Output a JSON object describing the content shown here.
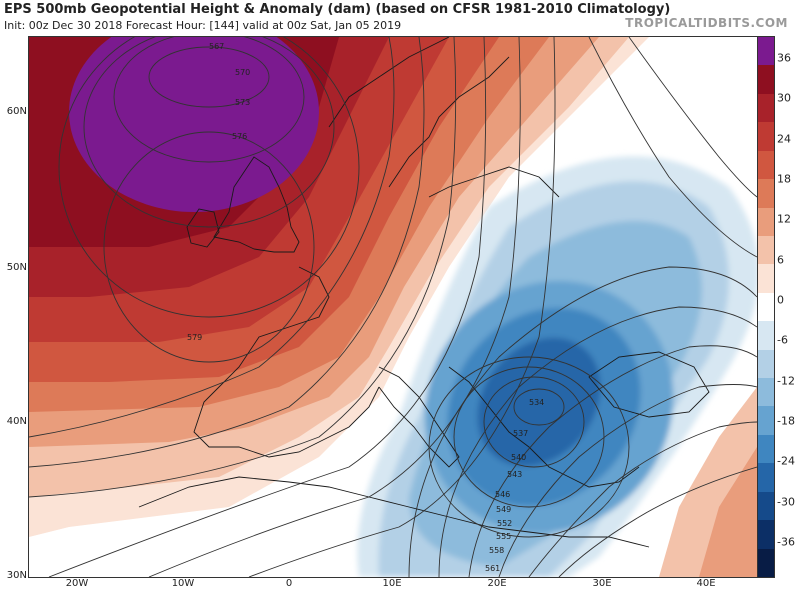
{
  "header": {
    "title": "EPS 500mb Geopotential Height & Anomaly (dam) (based on CFSR 1981-2010 Climatology)",
    "subtitle": "Init: 00z Dec 30 2018   Forecast Hour: [144]   valid at 00z Sat, Jan 05 2019",
    "brand": "TROPICALTIDBITS.COM"
  },
  "map": {
    "lat_labels": [
      "60N",
      "50N",
      "40N",
      "30N"
    ],
    "lon_labels": [
      "20W",
      "10W",
      "0",
      "10E",
      "20E",
      "30E",
      "40E"
    ],
    "contour_labels": [
      "567",
      "570",
      "573",
      "576",
      "579",
      "534",
      "537",
      "540",
      "543",
      "546",
      "549",
      "552",
      "555",
      "558",
      "561"
    ]
  },
  "colorbar": {
    "labels": [
      "36",
      "30",
      "24",
      "18",
      "12",
      "6",
      "0",
      "-6",
      "-12",
      "-18",
      "-24",
      "-30",
      "-36"
    ],
    "colors": [
      "#7b1a8f",
      "#8e0f20",
      "#a8222a",
      "#bf3a33",
      "#d05740",
      "#dd7a58",
      "#e99d7c",
      "#f3c2aa",
      "#fbe3d6",
      "#ffffff",
      "#d7e7f2",
      "#b3d0e6",
      "#8dbbdc",
      "#66a3d0",
      "#3f86c0",
      "#2566a8",
      "#154a8a",
      "#0c2f66",
      "#081c45"
    ]
  }
}
